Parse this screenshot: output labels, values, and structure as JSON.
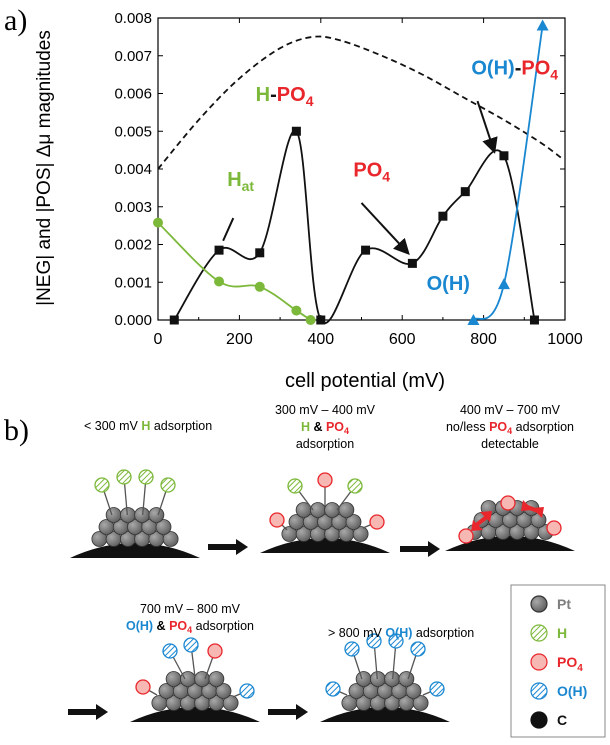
{
  "panels": {
    "a_label": "a)",
    "b_label": "b)"
  },
  "chart_data": {
    "type": "line",
    "xlabel": "cell potential (mV)",
    "ylabel": "|NEG| and |POS| Δμ magnitudes",
    "xlim": [
      0,
      1000
    ],
    "ylim": [
      0,
      0.008
    ],
    "x_ticks": [
      "0",
      "200",
      "400",
      "600",
      "800",
      "1000"
    ],
    "y_ticks": [
      "0.000",
      "0.001",
      "0.002",
      "0.003",
      "0.004",
      "0.005",
      "0.006",
      "0.007",
      "0.008"
    ],
    "grid": false,
    "series": [
      {
        "name": "H-PO4",
        "color": "#111111",
        "marker": "square",
        "x": [
          40,
          150,
          250,
          340,
          400,
          510,
          625,
          700,
          755,
          850,
          925
        ],
        "y": [
          0.0,
          0.00185,
          0.00178,
          0.005,
          0.0,
          0.00185,
          0.0015,
          0.00275,
          0.0034,
          0.00435,
          0.0
        ]
      },
      {
        "name": "H_at",
        "color": "#7cb83a",
        "marker": "circle",
        "x": [
          0,
          150,
          250,
          340,
          375
        ],
        "y": [
          0.00258,
          0.00102,
          0.00088,
          0.00025,
          0.0
        ]
      },
      {
        "name": "O(H)",
        "color": "#1a87d1",
        "marker": "triangle",
        "x": [
          775,
          850,
          945
        ],
        "y": [
          0.0,
          0.00095,
          0.0078
        ]
      },
      {
        "name": "dashed envelope",
        "color": "#111111",
        "style": "dashed",
        "x": [
          0,
          100,
          200,
          300,
          380,
          450,
          550,
          650,
          750,
          850,
          940,
          990
        ],
        "y": [
          0.004,
          0.0053,
          0.0064,
          0.0072,
          0.0075,
          0.0074,
          0.007,
          0.0065,
          0.0059,
          0.0053,
          0.0047,
          0.0043
        ]
      }
    ],
    "annotations": {
      "h_at": {
        "main": "H",
        "sub": "at",
        "x": 170,
        "y": 0.00355,
        "color": "#7cb83a"
      },
      "h_po4": {
        "h": "H",
        "dash": "-",
        "po": "PO",
        "sub": "4",
        "x": 240,
        "y": 0.0058
      },
      "po4": {
        "po": "PO",
        "sub": "4",
        "x": 480,
        "y": 0.0038,
        "color": "#e8262c"
      },
      "oh_po4": {
        "oh": "O(H)",
        "dash": "-",
        "po": "PO",
        "sub": "4",
        "x": 770,
        "y": 0.0065
      },
      "oh": {
        "text": "O(H)",
        "x": 660,
        "y": 0.0008,
        "color": "#1a87d1"
      }
    }
  },
  "colors": {
    "green": "#7cb83a",
    "red": "#e8262c",
    "blue": "#1a87d1",
    "pt_gray": "#7f7f7f",
    "carbon": "#111111"
  },
  "schematic": {
    "stage1": {
      "pre": "< 300 mV ",
      "h": "H",
      "post": " adsorption",
      "particle": "pt",
      "ads": "H"
    },
    "stage2": {
      "line1": "300 mV – 400 mV",
      "h": "H",
      "amp": " & ",
      "po": "PO",
      "sub": "4",
      "line3": "adsorption",
      "ads": "PO4"
    },
    "stage3": {
      "line1": "400 mV – 700 mV",
      "pre": "no/less ",
      "po": "PO",
      "sub": "4",
      "post": " adsorption",
      "line3": "detectable",
      "ads": "PO4-leaving"
    },
    "stage4": {
      "line1": "700 mV – 800 mV",
      "oh": "O(H)",
      "amp": " & ",
      "po": "PO",
      "sub": "4",
      "post": " adsorption",
      "ads": "OH+PO4"
    },
    "stage5": {
      "pre": "> 800 mV ",
      "oh": "O(H)",
      "post": " adsorption",
      "ads": "OH"
    }
  },
  "legend": {
    "items": [
      {
        "label": "Pt",
        "icon": "pt-sphere-icon",
        "color": "#7f7f7f"
      },
      {
        "label": "H",
        "icon": "h-hatched-circle-icon",
        "color": "#7cb83a"
      },
      {
        "label": "PO",
        "sub": "4",
        "icon": "po4-circle-icon",
        "color": "#e8262c"
      },
      {
        "label": "O(H)",
        "icon": "oh-hatched-circle-icon",
        "color": "#1a87d1"
      },
      {
        "label": "C",
        "icon": "carbon-dot-icon",
        "color": "#111111"
      }
    ]
  }
}
